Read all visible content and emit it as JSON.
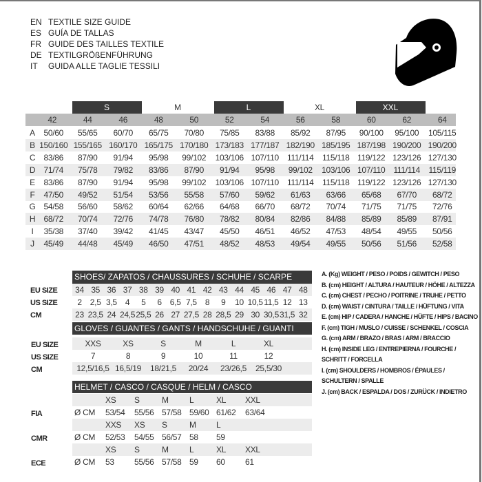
{
  "titles": [
    {
      "code": "EN",
      "text": "TEXTILE SIZE GUIDE"
    },
    {
      "code": "ES",
      "text": "GUÍA DE TALLAS"
    },
    {
      "code": "FR",
      "text": "GUIDE DES TAILLES TEXTILE"
    },
    {
      "code": "DE",
      "text": "TEXTILGRÖßENFÜHRUNG"
    },
    {
      "code": "IT",
      "text": "GUIDA ALLE TAGLIE TESSILI"
    }
  ],
  "icon": "helmet-icon",
  "colors": {
    "header_dark": "#3a3a3a",
    "header_gray": "#bdbdbd",
    "row_shade": "#ececec"
  },
  "textile": {
    "size_groups": [
      "S",
      "M",
      "L",
      "XL",
      "XXL"
    ],
    "sizes": [
      "42",
      "44",
      "46",
      "48",
      "50",
      "52",
      "54",
      "56",
      "58",
      "60",
      "62",
      "64"
    ],
    "rows": [
      {
        "letter": "A",
        "values": [
          "50/60",
          "55/65",
          "60/70",
          "65/75",
          "70/80",
          "75/85",
          "83/88",
          "85/92",
          "87/95",
          "90/100",
          "95/100",
          "105/115"
        ]
      },
      {
        "letter": "B",
        "values": [
          "150/160",
          "155/165",
          "160/170",
          "165/175",
          "170/180",
          "173/183",
          "177/187",
          "182/190",
          "185/195",
          "187/198",
          "190/200",
          "190/200"
        ]
      },
      {
        "letter": "C",
        "values": [
          "83/86",
          "87/90",
          "91/94",
          "95/98",
          "99/102",
          "103/106",
          "107/110",
          "111/114",
          "115/118",
          "119/122",
          "123/126",
          "127/130"
        ]
      },
      {
        "letter": "D",
        "values": [
          "71/74",
          "75/78",
          "79/82",
          "83/86",
          "87/90",
          "91/94",
          "95/98",
          "99/102",
          "103/106",
          "107/110",
          "111/114",
          "115/119"
        ]
      },
      {
        "letter": "E",
        "values": [
          "83/86",
          "87/90",
          "91/94",
          "95/98",
          "99/102",
          "103/106",
          "107/110",
          "111/114",
          "115/118",
          "119/122",
          "123/126",
          "127/130"
        ]
      },
      {
        "letter": "F",
        "values": [
          "47/50",
          "49/52",
          "51/54",
          "53/56",
          "55/58",
          "57/60",
          "59/62",
          "61/63",
          "63/66",
          "65/68",
          "67/70",
          "68/72"
        ]
      },
      {
        "letter": "G",
        "values": [
          "54/58",
          "56/60",
          "58/62",
          "60/64",
          "62/66",
          "64/68",
          "66/70",
          "68/72",
          "70/74",
          "71/75",
          "71/75",
          "72/76"
        ]
      },
      {
        "letter": "H",
        "values": [
          "68/72",
          "70/74",
          "72/76",
          "74/78",
          "76/80",
          "78/82",
          "80/84",
          "82/86",
          "84/88",
          "85/89",
          "85/89",
          "87/91"
        ]
      },
      {
        "letter": "I",
        "values": [
          "35/38",
          "37/40",
          "39/42",
          "41/45",
          "43/47",
          "45/50",
          "46/51",
          "46/52",
          "47/53",
          "48/54",
          "49/55",
          "50/56"
        ]
      },
      {
        "letter": "J",
        "values": [
          "45/49",
          "44/48",
          "45/49",
          "46/50",
          "47/51",
          "48/52",
          "48/53",
          "49/54",
          "49/55",
          "50/56",
          "51/56",
          "52/58"
        ]
      }
    ]
  },
  "shoes": {
    "title": "SHOES/ ZAPATOS / CHAUSSURES / SCHUHE / SCARPE",
    "rows": [
      {
        "label": "EU SIZE",
        "values": [
          "34",
          "35",
          "36",
          "37",
          "38",
          "39",
          "40",
          "41",
          "42",
          "43",
          "44",
          "45",
          "46",
          "47",
          "48"
        ]
      },
      {
        "label": "US SIZE",
        "values": [
          "2",
          "2,5",
          "3,5",
          "4",
          "5",
          "6",
          "6,5",
          "7,5",
          "8",
          "9",
          "10",
          "10,5",
          "11,5",
          "12",
          "13"
        ]
      },
      {
        "label": "CM",
        "values": [
          "23",
          "23,5",
          "24",
          "24,5",
          "25,5",
          "26",
          "27",
          "27,5",
          "28",
          "28,5",
          "29",
          "30",
          "30,5",
          "31,5",
          "32"
        ]
      }
    ]
  },
  "gloves": {
    "title": "GLOVES / GUANTES / GANTS / HANDSCHUHE / GUANTI",
    "rows": [
      {
        "label": "EU SIZE",
        "values": [
          "XXS",
          "XS",
          "S",
          "M",
          "L",
          "XL"
        ]
      },
      {
        "label": "US SIZE",
        "values": [
          "7",
          "8",
          "9",
          "10",
          "11",
          "12"
        ]
      },
      {
        "label": "CM",
        "values": [
          "12,5/16,5",
          "16,5/19",
          "18/21,5",
          "20/24",
          "23/26,5",
          "25,5/30"
        ]
      }
    ]
  },
  "helmet": {
    "title": "HELMET / CASCO / CASQUE / HELM / CASCO",
    "unit": "Ø CM",
    "standards": [
      {
        "label": "FIA",
        "sizes": [
          "XS",
          "S",
          "M",
          "L",
          "XL",
          "XXL"
        ],
        "values": [
          "53/54",
          "55/56",
          "57/58",
          "59/60",
          "61/62",
          "63/64"
        ]
      },
      {
        "label": "CMR",
        "sizes": [
          "XXS",
          "XS",
          "S",
          "M",
          "L"
        ],
        "values": [
          "52/53",
          "54/55",
          "56/57",
          "58",
          "59"
        ]
      },
      {
        "label": "ECE",
        "sizes": [
          "XS",
          "S",
          "M",
          "L",
          "XL",
          "XXL"
        ],
        "values": [
          "53",
          "55/56",
          "57/58",
          "59",
          "60",
          "61"
        ]
      }
    ]
  },
  "legend": [
    "A. (Kg) WEIGHT / PESO / POIDS / GEWITCH / PESO",
    "B. (cm) HEIGHT / ALTURA / HAUTEUR / HÖHE / ALTEZZA",
    "C. (cm) CHEST / PECHO / POITRINE / TRUHE / PETTO",
    "D. (cm) WAIST / CINTURA / TAILLE / HÜFTUNG / VITA",
    "E. (cm) HIP / CADERA / HANCHE / HÜFTE / HIPS /  BACINO",
    "F.  (cm) TIGH / MUSLO / CUISSE / SCHENKEL / COSCIA",
    "G. (cm) ARM  / BRAZO / BRAS / ARM / BRACCIO",
    "H. (cm) INSIDE LEG / ENTREPIERNA / FOURCHE /",
    "SCHRITT / FORCELLA",
    "I.  (cm) SHOULDERS / HOMBROS / ÉPAULES /",
    "SCHULTERN / SPALLE",
    "J. (cm) BACK / ESPALDA / DOS / ZURÜCK / INDIETRO"
  ]
}
